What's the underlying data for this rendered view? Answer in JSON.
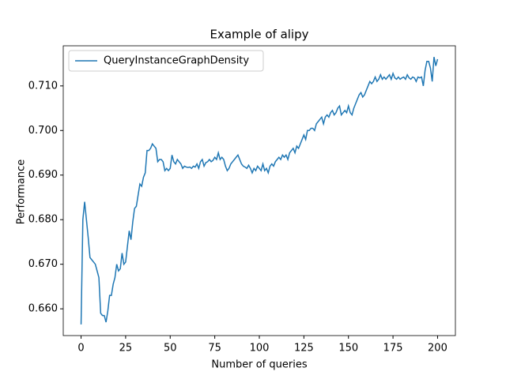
{
  "chart_data": {
    "type": "line",
    "title": "Example of alipy",
    "x_label": "Number of queries",
    "y_label": "Performance",
    "x": [
      0,
      1,
      2,
      3,
      4,
      5,
      6,
      7,
      8,
      9,
      10,
      11,
      12,
      13,
      14,
      15,
      16,
      17,
      18,
      19,
      20,
      21,
      22,
      23,
      24,
      25,
      26,
      27,
      28,
      29,
      30,
      31,
      32,
      33,
      34,
      35,
      36,
      37,
      38,
      39,
      40,
      41,
      42,
      43,
      44,
      45,
      46,
      47,
      48,
      49,
      50,
      51,
      52,
      53,
      54,
      55,
      56,
      57,
      58,
      59,
      60,
      61,
      62,
      63,
      64,
      65,
      66,
      67,
      68,
      69,
      70,
      71,
      72,
      73,
      74,
      75,
      76,
      77,
      78,
      79,
      80,
      81,
      82,
      83,
      84,
      85,
      86,
      87,
      88,
      89,
      90,
      91,
      92,
      93,
      94,
      95,
      96,
      97,
      98,
      99,
      100,
      101,
      102,
      103,
      104,
      105,
      106,
      107,
      108,
      109,
      110,
      111,
      112,
      113,
      114,
      115,
      116,
      117,
      118,
      119,
      120,
      121,
      122,
      123,
      124,
      125,
      126,
      127,
      128,
      129,
      130,
      131,
      132,
      133,
      134,
      135,
      136,
      137,
      138,
      139,
      140,
      141,
      142,
      143,
      144,
      145,
      146,
      147,
      148,
      149,
      150,
      151,
      152,
      153,
      154,
      155,
      156,
      157,
      158,
      159,
      160,
      161,
      162,
      163,
      164,
      165,
      166,
      167,
      168,
      169,
      170,
      171,
      172,
      173,
      174,
      175,
      176,
      177,
      178,
      179,
      180,
      181,
      182,
      183,
      184,
      185,
      186,
      187,
      188,
      189,
      190,
      191,
      192,
      193,
      194,
      195,
      196,
      197,
      198,
      199,
      200
    ],
    "series": [
      {
        "name": "QueryInstanceGraphDensity",
        "color": "#1f77b4",
        "values": [
          0.6565,
          0.68,
          0.684,
          0.68,
          0.676,
          0.6715,
          0.671,
          0.6705,
          0.67,
          0.6685,
          0.667,
          0.659,
          0.6585,
          0.6585,
          0.657,
          0.6595,
          0.663,
          0.663,
          0.6655,
          0.667,
          0.67,
          0.6685,
          0.669,
          0.6725,
          0.67,
          0.6705,
          0.674,
          0.6775,
          0.6755,
          0.6795,
          0.6825,
          0.683,
          0.6855,
          0.688,
          0.6875,
          0.6895,
          0.6905,
          0.6955,
          0.6955,
          0.696,
          0.697,
          0.6965,
          0.696,
          0.693,
          0.6935,
          0.6935,
          0.693,
          0.691,
          0.6915,
          0.691,
          0.6915,
          0.6945,
          0.693,
          0.6925,
          0.6935,
          0.693,
          0.6925,
          0.6915,
          0.692,
          0.6918,
          0.6917,
          0.6918,
          0.6915,
          0.692,
          0.6918,
          0.6925,
          0.6915,
          0.693,
          0.6935,
          0.692,
          0.6928,
          0.693,
          0.6935,
          0.693,
          0.6933,
          0.694,
          0.6935,
          0.695,
          0.6935,
          0.694,
          0.6935,
          0.692,
          0.691,
          0.6915,
          0.6925,
          0.693,
          0.6935,
          0.694,
          0.6945,
          0.6935,
          0.6925,
          0.692,
          0.6918,
          0.6915,
          0.6922,
          0.6915,
          0.6905,
          0.6915,
          0.691,
          0.692,
          0.6915,
          0.691,
          0.6925,
          0.691,
          0.6915,
          0.6905,
          0.692,
          0.6925,
          0.692,
          0.693,
          0.6935,
          0.694,
          0.6935,
          0.6945,
          0.694,
          0.6945,
          0.6935,
          0.695,
          0.6955,
          0.696,
          0.695,
          0.6965,
          0.696,
          0.697,
          0.698,
          0.699,
          0.698,
          0.7,
          0.7,
          0.7005,
          0.7005,
          0.7,
          0.7015,
          0.702,
          0.7025,
          0.703,
          0.7015,
          0.703,
          0.7035,
          0.703,
          0.704,
          0.7045,
          0.7035,
          0.704,
          0.705,
          0.7055,
          0.7035,
          0.704,
          0.7045,
          0.704,
          0.7055,
          0.704,
          0.7035,
          0.705,
          0.706,
          0.707,
          0.708,
          0.7085,
          0.7075,
          0.708,
          0.709,
          0.71,
          0.711,
          0.7105,
          0.711,
          0.712,
          0.711,
          0.7115,
          0.7125,
          0.7115,
          0.712,
          0.7115,
          0.712,
          0.7125,
          0.7115,
          0.7128,
          0.7118,
          0.7115,
          0.712,
          0.7115,
          0.7118,
          0.712,
          0.7115,
          0.7125,
          0.7118,
          0.7115,
          0.712,
          0.7118,
          0.711,
          0.712,
          0.7118,
          0.712,
          0.71,
          0.7135,
          0.7155,
          0.7155,
          0.714,
          0.711,
          0.7165,
          0.7145,
          0.716
        ]
      }
    ],
    "xlim": [
      -10,
      210
    ],
    "ylim": [
      0.654,
      0.719
    ],
    "xticks": [
      0,
      25,
      50,
      75,
      100,
      125,
      150,
      175,
      200
    ],
    "yticks": [
      {
        "value": 0.66,
        "label": "0.660"
      },
      {
        "value": 0.67,
        "label": "0.670"
      },
      {
        "value": 0.68,
        "label": "0.680"
      },
      {
        "value": 0.69,
        "label": "0.690"
      },
      {
        "value": 0.7,
        "label": "0.700"
      },
      {
        "value": 0.71,
        "label": "0.710"
      }
    ],
    "legend": "upper left",
    "grid": false
  }
}
